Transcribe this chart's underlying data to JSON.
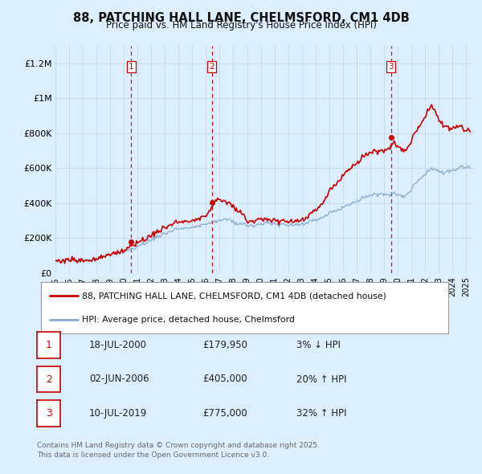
{
  "title": "88, PATCHING HALL LANE, CHELMSFORD, CM1 4DB",
  "subtitle": "Price paid vs. HM Land Registry's House Price Index (HPI)",
  "legend_line1": "88, PATCHING HALL LANE, CHELMSFORD, CM1 4DB (detached house)",
  "legend_line2": "HPI: Average price, detached house, Chelmsford",
  "footer": "Contains HM Land Registry data © Crown copyright and database right 2025.\nThis data is licensed under the Open Government Licence v3.0.",
  "sale_color": "#cc0000",
  "hpi_color": "#88aacc",
  "background_color": "#ddeeff",
  "plot_bg_color": "#ddeeff",
  "vline_color": "#cc0000",
  "ylim": [
    0,
    1300000
  ],
  "yticks": [
    0,
    200000,
    400000,
    600000,
    800000,
    1000000,
    1200000
  ],
  "ytick_labels": [
    "£0",
    "£200K",
    "£400K",
    "£600K",
    "£800K",
    "£1M",
    "£1.2M"
  ],
  "transactions": [
    {
      "num": 1,
      "date_label": "18-JUL-2000",
      "date_x": 2000.54,
      "price": 179950,
      "pct": "3%",
      "dir": "↓"
    },
    {
      "num": 2,
      "date_label": "02-JUN-2006",
      "date_x": 2006.42,
      "price": 405000,
      "pct": "20%",
      "dir": "↑"
    },
    {
      "num": 3,
      "date_label": "10-JUL-2019",
      "date_x": 2019.52,
      "price": 775000,
      "pct": "32%",
      "dir": "↑"
    }
  ],
  "xlim": [
    1995.0,
    2025.5
  ],
  "xtick_years": [
    1995,
    1996,
    1997,
    1998,
    1999,
    2000,
    2001,
    2002,
    2003,
    2004,
    2005,
    2006,
    2007,
    2008,
    2009,
    2010,
    2011,
    2012,
    2013,
    2014,
    2015,
    2016,
    2017,
    2018,
    2019,
    2020,
    2021,
    2022,
    2023,
    2024,
    2025
  ]
}
